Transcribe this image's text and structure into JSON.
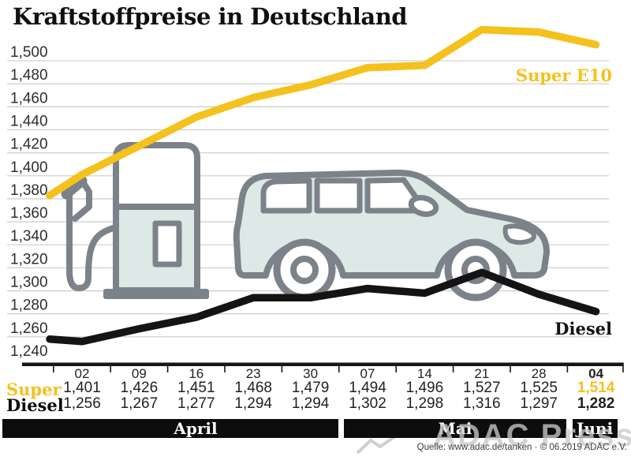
{
  "title": "Kraftstoffpreise in Deutschland",
  "chart_data": {
    "type": "line",
    "categories": [
      "02",
      "09",
      "16",
      "23",
      "30",
      "07",
      "14",
      "21",
      "28",
      "04"
    ],
    "last_column_highlighted": true,
    "series": [
      {
        "name": "Super E10",
        "table_label": "Super",
        "color": "#F4C11D",
        "values": [
          1401,
          1426,
          1451,
          1468,
          1479,
          1494,
          1496,
          1527,
          1525,
          1514
        ],
        "lead_in_estimate": 1383
      },
      {
        "name": "Diesel",
        "table_label": "Diesel",
        "color": "#141414",
        "values": [
          1256,
          1267,
          1277,
          1294,
          1294,
          1302,
          1298,
          1316,
          1297,
          1282
        ],
        "lead_in_estimate": 1258
      }
    ],
    "month_groups": [
      {
        "label": "April",
        "first_col": 0,
        "last_col": 4
      },
      {
        "label": "Mai",
        "first_col": 5,
        "last_col": 8
      },
      {
        "label": "Juni",
        "first_col": 9,
        "last_col": 9
      }
    ],
    "ylim": [
      1240,
      1500
    ],
    "y_tick_step": 20,
    "y_tick_labels": [
      "1,500",
      "1,480",
      "1,460",
      "1,440",
      "1,420",
      "1,400",
      "1,380",
      "1,360",
      "1,340",
      "1,320",
      "1,300",
      "1,280",
      "1,260",
      "1,240"
    ],
    "grid": "horizontal",
    "legend_position": "labels-at-line-end-right",
    "value_format": "thousands-comma"
  },
  "footer": {
    "source": "Quelle: www.adac.de/tanken · © 06.2019 ADAC e.V.",
    "watermark": "ADAC Presse"
  },
  "colors": {
    "accent_yellow": "#F4C11D",
    "line_black": "#141414",
    "gridline": "#cdd0d2",
    "illustration_stroke": "#7b828a",
    "illustration_fill": "#dde9e6",
    "month_bar_bg": "#0d0d0d"
  }
}
